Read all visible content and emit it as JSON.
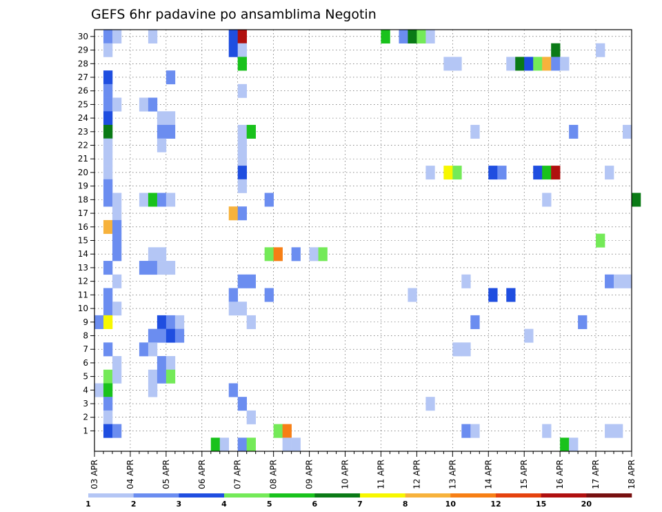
{
  "chart_data": {
    "type": "heatmap",
    "title": "GEFS 6hr padavine po ansamblima Negotin",
    "xlabel": "",
    "ylabel": "",
    "x_dates": [
      "03 APR",
      "04 APR",
      "05 APR",
      "06 APR",
      "07 APR",
      "08 APR",
      "09 APR",
      "10 APR",
      "11 APR",
      "12 APR",
      "13 APR",
      "14 APR",
      "15 APR",
      "16 APR",
      "17 APR",
      "18 APR"
    ],
    "x_unit": "6-hour steps (4 per day, 03 APR to 18 APR)",
    "y_ticks": [
      1,
      2,
      3,
      4,
      5,
      6,
      7,
      8,
      9,
      10,
      11,
      12,
      13,
      14,
      15,
      16,
      17,
      18,
      19,
      20,
      21,
      22,
      23,
      24,
      25,
      26,
      27,
      28,
      29,
      30
    ],
    "ylim": [
      0,
      30
    ],
    "grid": true,
    "legend_position": "bottom",
    "legend": {
      "labels": [
        "1",
        "2",
        "3",
        "4",
        "5",
        "6",
        "7",
        "8",
        "10",
        "12",
        "15",
        "20"
      ],
      "colors": [
        "#b4c6f5",
        "#6b8df0",
        "#1f4ee0",
        "#74ea58",
        "#19c21c",
        "#0a7a16",
        "#f7f700",
        "#f7b23c",
        "#f77f15",
        "#e5420e",
        "#b0100f",
        "#781010"
      ]
    },
    "cells_note": "each cell = [six-hour step index, ensemble member (0 = control), precipitation class index into legend]",
    "cells": [
      [
        1,
        30,
        1
      ],
      [
        2,
        30,
        0
      ],
      [
        6,
        30,
        0
      ],
      [
        15,
        30,
        2
      ],
      [
        16,
        30,
        10
      ],
      [
        32,
        30,
        4
      ],
      [
        34,
        30,
        1
      ],
      [
        35,
        30,
        5
      ],
      [
        36,
        30,
        3
      ],
      [
        37,
        30,
        0
      ],
      [
        1,
        29,
        0
      ],
      [
        15,
        29,
        2
      ],
      [
        16,
        29,
        0
      ],
      [
        51,
        29,
        5
      ],
      [
        56,
        29,
        0
      ],
      [
        16,
        28,
        4
      ],
      [
        39,
        28,
        0
      ],
      [
        40,
        28,
        0
      ],
      [
        46,
        28,
        0
      ],
      [
        47,
        28,
        5
      ],
      [
        48,
        28,
        2
      ],
      [
        49,
        28,
        3
      ],
      [
        50,
        28,
        7
      ],
      [
        51,
        28,
        1
      ],
      [
        52,
        28,
        0
      ],
      [
        1,
        27,
        2
      ],
      [
        8,
        27,
        1
      ],
      [
        1,
        26,
        1
      ],
      [
        16,
        26,
        0
      ],
      [
        1,
        25,
        1
      ],
      [
        2,
        25,
        0
      ],
      [
        5,
        25,
        0
      ],
      [
        6,
        25,
        1
      ],
      [
        1,
        24,
        2
      ],
      [
        7,
        24,
        0
      ],
      [
        8,
        24,
        0
      ],
      [
        1,
        23,
        5
      ],
      [
        7,
        23,
        1
      ],
      [
        8,
        23,
        1
      ],
      [
        16,
        23,
        0
      ],
      [
        17,
        23,
        4
      ],
      [
        42,
        23,
        0
      ],
      [
        53,
        23,
        1
      ],
      [
        59,
        23,
        0
      ],
      [
        1,
        22,
        0
      ],
      [
        7,
        22,
        0
      ],
      [
        16,
        22,
        0
      ],
      [
        1,
        21,
        0
      ],
      [
        16,
        21,
        0
      ],
      [
        1,
        20,
        0
      ],
      [
        16,
        20,
        2
      ],
      [
        37,
        20,
        0
      ],
      [
        39,
        20,
        6
      ],
      [
        40,
        20,
        3
      ],
      [
        44,
        20,
        2
      ],
      [
        45,
        20,
        1
      ],
      [
        49,
        20,
        2
      ],
      [
        50,
        20,
        4
      ],
      [
        51,
        20,
        10
      ],
      [
        57,
        20,
        0
      ],
      [
        1,
        19,
        1
      ],
      [
        16,
        19,
        0
      ],
      [
        1,
        18,
        1
      ],
      [
        2,
        18,
        0
      ],
      [
        5,
        18,
        0
      ],
      [
        6,
        18,
        4
      ],
      [
        7,
        18,
        1
      ],
      [
        8,
        18,
        0
      ],
      [
        19,
        18,
        1
      ],
      [
        50,
        18,
        0
      ],
      [
        60,
        18,
        5
      ],
      [
        2,
        17,
        0
      ],
      [
        15,
        17,
        7
      ],
      [
        16,
        17,
        1
      ],
      [
        1,
        16,
        7
      ],
      [
        2,
        16,
        1
      ],
      [
        2,
        15,
        1
      ],
      [
        56,
        15,
        3
      ],
      [
        2,
        14,
        1
      ],
      [
        6,
        14,
        0
      ],
      [
        7,
        14,
        0
      ],
      [
        19,
        14,
        3
      ],
      [
        20,
        14,
        8
      ],
      [
        22,
        14,
        1
      ],
      [
        24,
        14,
        0
      ],
      [
        25,
        14,
        3
      ],
      [
        1,
        13,
        1
      ],
      [
        5,
        13,
        1
      ],
      [
        6,
        13,
        1
      ],
      [
        7,
        13,
        0
      ],
      [
        8,
        13,
        0
      ],
      [
        2,
        12,
        0
      ],
      [
        16,
        12,
        1
      ],
      [
        17,
        12,
        1
      ],
      [
        41,
        12,
        0
      ],
      [
        57,
        12,
        1
      ],
      [
        58,
        12,
        0
      ],
      [
        59,
        12,
        0
      ],
      [
        1,
        11,
        1
      ],
      [
        15,
        11,
        1
      ],
      [
        19,
        11,
        1
      ],
      [
        35,
        11,
        0
      ],
      [
        44,
        11,
        2
      ],
      [
        46,
        11,
        2
      ],
      [
        1,
        10,
        1
      ],
      [
        2,
        10,
        0
      ],
      [
        15,
        10,
        0
      ],
      [
        16,
        10,
        0
      ],
      [
        0,
        9,
        1
      ],
      [
        1,
        9,
        6
      ],
      [
        7,
        9,
        2
      ],
      [
        8,
        9,
        1
      ],
      [
        9,
        9,
        0
      ],
      [
        17,
        9,
        0
      ],
      [
        42,
        9,
        1
      ],
      [
        54,
        9,
        1
      ],
      [
        6,
        8,
        1
      ],
      [
        7,
        8,
        1
      ],
      [
        8,
        8,
        2
      ],
      [
        9,
        8,
        1
      ],
      [
        48,
        8,
        0
      ],
      [
        1,
        7,
        1
      ],
      [
        5,
        7,
        1
      ],
      [
        6,
        7,
        0
      ],
      [
        40,
        7,
        0
      ],
      [
        41,
        7,
        0
      ],
      [
        2,
        6,
        0
      ],
      [
        7,
        6,
        1
      ],
      [
        8,
        6,
        0
      ],
      [
        1,
        5,
        3
      ],
      [
        2,
        5,
        0
      ],
      [
        6,
        5,
        0
      ],
      [
        7,
        5,
        1
      ],
      [
        8,
        5,
        3
      ],
      [
        0,
        4,
        0
      ],
      [
        1,
        4,
        4
      ],
      [
        6,
        4,
        0
      ],
      [
        15,
        4,
        1
      ],
      [
        1,
        3,
        1
      ],
      [
        16,
        3,
        1
      ],
      [
        37,
        3,
        0
      ],
      [
        1,
        2,
        0
      ],
      [
        17,
        2,
        0
      ],
      [
        1,
        1,
        2
      ],
      [
        2,
        1,
        1
      ],
      [
        20,
        1,
        3
      ],
      [
        21,
        1,
        8
      ],
      [
        41,
        1,
        1
      ],
      [
        42,
        1,
        0
      ],
      [
        50,
        1,
        0
      ],
      [
        57,
        1,
        0
      ],
      [
        58,
        1,
        0
      ],
      [
        13,
        0,
        4
      ],
      [
        14,
        0,
        0
      ],
      [
        16,
        0,
        1
      ],
      [
        17,
        0,
        3
      ],
      [
        21,
        0,
        0
      ],
      [
        22,
        0,
        0
      ],
      [
        52,
        0,
        4
      ],
      [
        53,
        0,
        0
      ]
    ]
  }
}
